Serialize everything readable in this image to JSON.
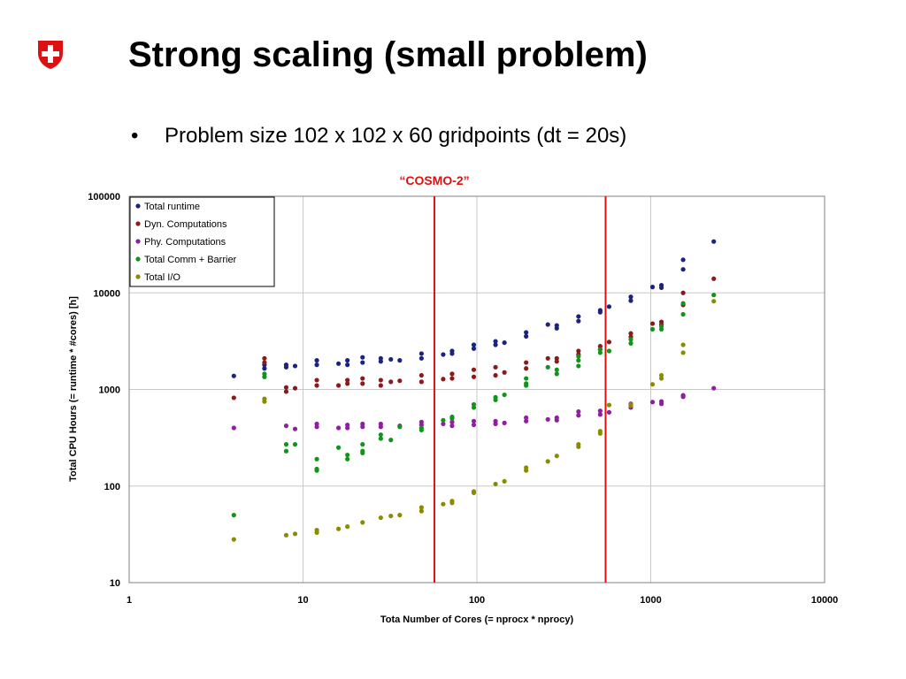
{
  "slide": {
    "title": "Strong scaling (small problem)",
    "bullet_marker": "•",
    "bullet": "Problem size 102 x 102 x 60 gridpoints (dt = 20s)",
    "logo_color": "#dd1111"
  },
  "chart_data": {
    "type": "scatter",
    "title": "",
    "annotation": "“COSMO-2”",
    "annotation_color": "#dd1111",
    "xlabel": "Tota Number of Cores (= nprocx * nprocy)",
    "ylabel": "Total CPU Hours (= runtime * #cores) [h]",
    "x_scale": "log",
    "y_scale": "log",
    "xlim": [
      1,
      10000
    ],
    "ylim": [
      10,
      100000
    ],
    "x_ticks": [
      "1",
      "10",
      "100",
      "1000",
      "10000"
    ],
    "y_ticks": [
      "10",
      "100",
      "1000",
      "10000",
      "100000"
    ],
    "grid": true,
    "legend_position": "top-left",
    "vertical_lines": [
      57,
      550
    ],
    "vertical_line_color": "#dd1111",
    "series": [
      {
        "name": "Total runtime",
        "color": "#1a237e",
        "x": [
          4,
          6,
          6,
          8,
          8,
          9,
          12,
          12,
          16,
          18,
          18,
          22,
          22,
          28,
          28,
          32,
          36,
          48,
          48,
          64,
          72,
          72,
          96,
          96,
          128,
          128,
          144,
          192,
          192,
          256,
          288,
          288,
          384,
          384,
          512,
          512,
          576,
          768,
          768,
          1024,
          1152,
          1152,
          1536,
          1536,
          2304
        ],
        "y": [
          1380,
          1800,
          1650,
          1800,
          1700,
          1750,
          2000,
          1800,
          1850,
          2000,
          1800,
          2150,
          1900,
          2100,
          1950,
          2050,
          2000,
          2350,
          2100,
          2300,
          2500,
          2350,
          2900,
          2650,
          3150,
          2900,
          3050,
          3900,
          3550,
          4700,
          4600,
          4300,
          5700,
          5100,
          6600,
          6300,
          7200,
          9100,
          8300,
          11500,
          12000,
          11300,
          22000,
          17500,
          34000
        ]
      },
      {
        "name": "Dyn. Computations",
        "color": "#8b1a1a",
        "x": [
          4,
          6,
          6,
          8,
          8,
          9,
          12,
          12,
          16,
          18,
          18,
          22,
          22,
          28,
          28,
          32,
          36,
          48,
          48,
          64,
          72,
          72,
          96,
          96,
          128,
          128,
          144,
          192,
          192,
          256,
          288,
          288,
          384,
          384,
          512,
          512,
          576,
          768,
          768,
          1024,
          1152,
          1152,
          1536,
          1536,
          2304
        ],
        "y": [
          820,
          2100,
          1900,
          1050,
          950,
          1030,
          1250,
          1100,
          1100,
          1250,
          1150,
          1300,
          1150,
          1250,
          1100,
          1200,
          1230,
          1400,
          1200,
          1280,
          1450,
          1300,
          1600,
          1350,
          1700,
          1400,
          1500,
          1900,
          1650,
          2100,
          2100,
          1950,
          2500,
          2300,
          2800,
          2600,
          3100,
          3800,
          3500,
          4800,
          5000,
          4700,
          10000,
          7500,
          14000
        ]
      },
      {
        "name": "Phy. Computations",
        "color": "#8e1fa0",
        "x": [
          4,
          8,
          9,
          12,
          12,
          16,
          18,
          18,
          22,
          22,
          28,
          28,
          36,
          48,
          48,
          64,
          72,
          72,
          96,
          96,
          128,
          128,
          144,
          192,
          192,
          256,
          288,
          288,
          384,
          384,
          512,
          512,
          576,
          768,
          768,
          1024,
          1152,
          1152,
          1536,
          1536,
          2304
        ],
        "y": [
          400,
          420,
          390,
          440,
          410,
          400,
          430,
          400,
          440,
          410,
          440,
          410,
          420,
          460,
          430,
          440,
          460,
          420,
          470,
          430,
          470,
          440,
          450,
          510,
          470,
          490,
          510,
          480,
          590,
          540,
          600,
          550,
          580,
          710,
          650,
          740,
          750,
          710,
          870,
          840,
          1030
        ]
      },
      {
        "name": "Total Comm + Barrier",
        "color": "#12941a",
        "x": [
          4,
          6,
          6,
          8,
          8,
          9,
          12,
          12,
          12,
          16,
          18,
          18,
          22,
          22,
          22,
          28,
          28,
          32,
          36,
          48,
          48,
          64,
          72,
          72,
          96,
          96,
          128,
          128,
          144,
          192,
          192,
          192,
          256,
          288,
          288,
          384,
          384,
          384,
          512,
          512,
          576,
          768,
          768,
          1024,
          1152,
          1152,
          1536,
          1536,
          2304
        ],
        "y": [
          50,
          1450,
          1350,
          270,
          230,
          270,
          190,
          150,
          145,
          250,
          210,
          190,
          270,
          230,
          220,
          340,
          310,
          300,
          410,
          400,
          380,
          480,
          520,
          500,
          700,
          650,
          830,
          780,
          880,
          1300,
          1150,
          1100,
          1700,
          1600,
          1450,
          2200,
          2000,
          1750,
          2600,
          2400,
          2500,
          3300,
          3000,
          4200,
          4500,
          4200,
          7800,
          6000,
          9500
        ]
      },
      {
        "name": "Total I/O",
        "color": "#8b8b00",
        "x": [
          4,
          6,
          6,
          8,
          9,
          12,
          12,
          16,
          18,
          22,
          28,
          32,
          36,
          48,
          48,
          64,
          72,
          72,
          96,
          96,
          128,
          144,
          192,
          192,
          256,
          288,
          384,
          384,
          512,
          512,
          576,
          768,
          768,
          1024,
          1152,
          1152,
          1536,
          1536,
          2304
        ],
        "y": [
          28,
          800,
          750,
          31,
          32,
          35,
          33,
          36,
          38,
          42,
          47,
          49,
          50,
          60,
          55,
          65,
          70,
          67,
          88,
          85,
          105,
          112,
          155,
          145,
          180,
          205,
          270,
          255,
          370,
          350,
          690,
          700,
          680,
          1130,
          1400,
          1300,
          2900,
          2400,
          8200
        ]
      }
    ]
  }
}
